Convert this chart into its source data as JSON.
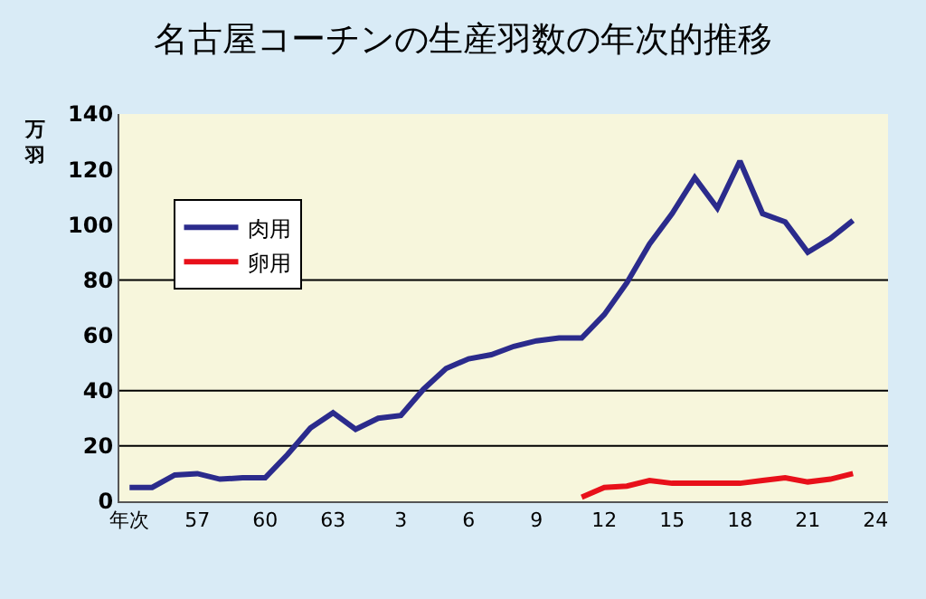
{
  "chart_data": {
    "type": "line",
    "title": "名古屋コーチンの生産羽数の年次的推移",
    "ylabel": "万羽",
    "categories": [
      "年次",
      null,
      null,
      "57",
      null,
      null,
      "60",
      null,
      null,
      "63",
      null,
      null,
      "3",
      null,
      null,
      "6",
      null,
      null,
      "9",
      null,
      null,
      "12",
      null,
      null,
      "15",
      null,
      null,
      "18",
      null,
      null,
      "21",
      null,
      null,
      "24"
    ],
    "series": [
      {
        "name": "肉用",
        "color": "#2b2b8c",
        "values": [
          5,
          5,
          9.5,
          10,
          8,
          8.5,
          8.5,
          17,
          26.5,
          32,
          26,
          30,
          31,
          40.5,
          48,
          51.5,
          53,
          56,
          58,
          59,
          59,
          67.5,
          79,
          93,
          104,
          117,
          106,
          123,
          104,
          101,
          90,
          95,
          101.5,
          null
        ]
      },
      {
        "name": "卵用",
        "color": "#e8101a",
        "values": [
          null,
          null,
          null,
          null,
          null,
          null,
          null,
          null,
          null,
          null,
          null,
          null,
          null,
          null,
          null,
          null,
          null,
          null,
          null,
          null,
          1.5,
          5,
          5.5,
          7.5,
          6.5,
          6.5,
          6.5,
          6.5,
          7.5,
          8.5,
          7,
          8,
          10,
          null
        ]
      }
    ],
    "ylim": [
      0,
      140
    ],
    "yticks": [
      0,
      20,
      40,
      60,
      80,
      100,
      120,
      140
    ],
    "ref_lines": [
      {
        "axis": "y",
        "value": 20,
        "color": "#000000"
      },
      {
        "axis": "y",
        "value": 40,
        "color": "#000000"
      },
      {
        "axis": "y",
        "value": 80,
        "color": "#000000"
      }
    ],
    "legend": "top left",
    "marker": "none",
    "line_style": "solid"
  }
}
